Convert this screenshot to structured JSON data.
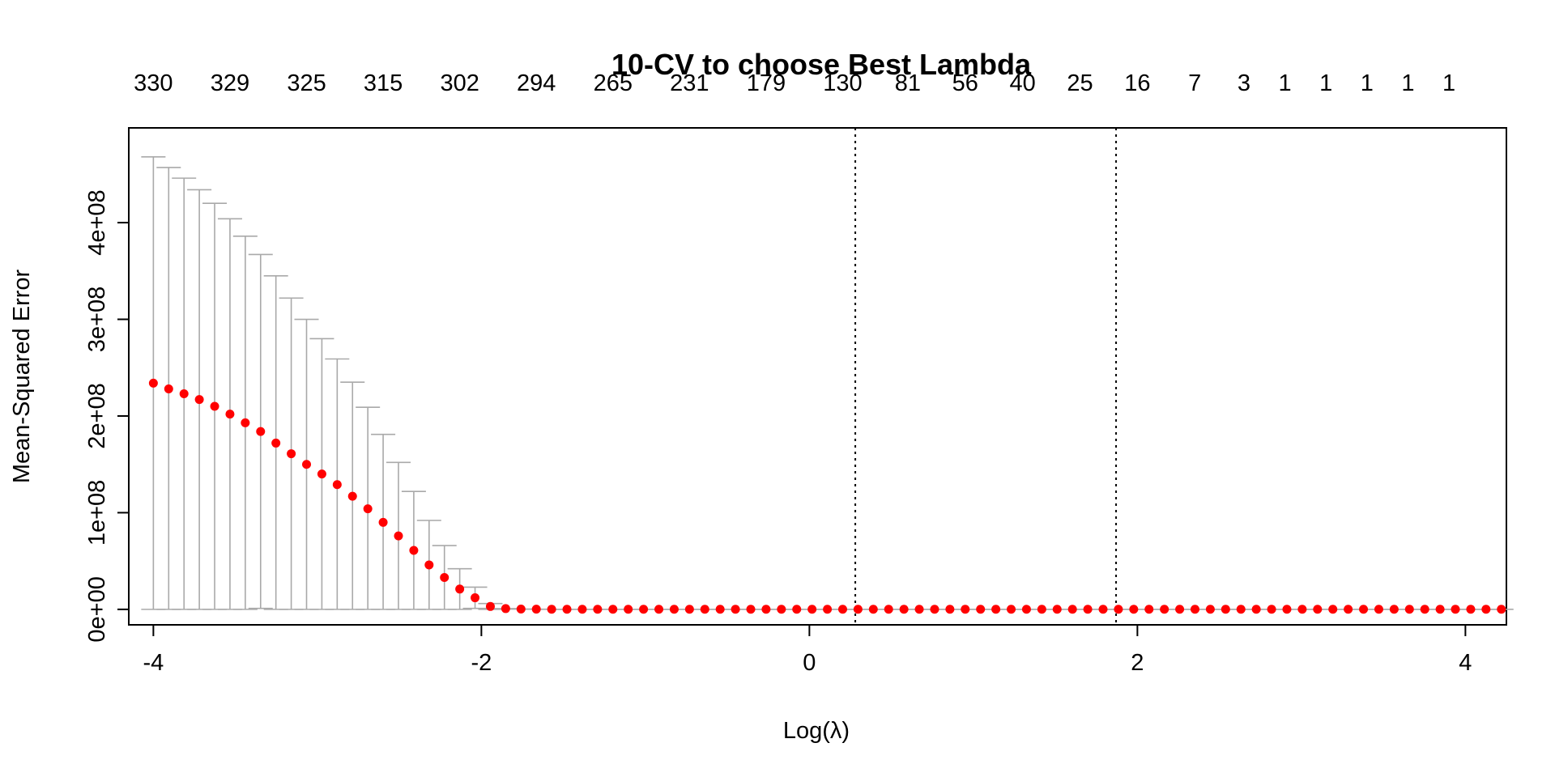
{
  "chart_data": {
    "type": "scatter",
    "title": "10-CV to choose Best Lambda",
    "xlabel": "Log(λ)",
    "ylabel": "Mean-Squared Error",
    "xlim": [
      -4.15,
      4.25
    ],
    "ylim": [
      -16000000.0,
      498000000.0
    ],
    "x_ticks": [
      -4,
      -2,
      0,
      2,
      4
    ],
    "x_tick_labels": [
      "-4",
      "-2",
      "0",
      "2",
      "4"
    ],
    "y_ticks": [
      0,
      100000000,
      200000000,
      300000000,
      400000000
    ],
    "y_tick_labels": [
      "0e+00",
      "1e+08",
      "2e+08",
      "3e+08",
      "4e+08"
    ],
    "top_axis": {
      "x": [
        -4.0,
        -3.533,
        -3.066,
        -2.599,
        -2.132,
        -1.665,
        -1.198,
        -0.731,
        -0.264,
        0.203,
        0.6,
        0.95,
        1.3,
        1.65,
        2.0,
        2.35,
        2.65,
        2.9,
        3.15,
        3.4,
        3.65,
        3.9
      ],
      "labels": [
        "330",
        "329",
        "325",
        "315",
        "302",
        "294",
        "265",
        "231",
        "179",
        "130",
        "81",
        "56",
        "40",
        "25",
        "16",
        "7",
        "3",
        "1",
        "1",
        "1",
        "1",
        "1"
      ]
    },
    "vlines": [
      0.28,
      1.87
    ],
    "series": [
      {
        "x_start": -4.0,
        "x_step": 0.0934,
        "mse": [
          234000000,
          228000000,
          223000000,
          217000000,
          210000000,
          202000000,
          193000000,
          184000000,
          172000000,
          161000000,
          150000000,
          140000000,
          129000000,
          117000000,
          104000000,
          90000000,
          76000000,
          61000000,
          46000000,
          33000000,
          21000000,
          12000000,
          3000000,
          800000,
          300000,
          200000,
          100000,
          100000,
          100000,
          100000,
          100000,
          100000,
          100000,
          100000,
          100000,
          100000,
          100000,
          100000,
          100000,
          100000,
          100000,
          100000,
          100000,
          100000,
          100000,
          100000,
          100000,
          100000,
          100000,
          100000,
          100000,
          100000,
          100000,
          100000,
          100000,
          100000,
          100000,
          100000,
          100000,
          100000,
          100000,
          100000,
          100000,
          100000,
          100000,
          100000,
          100000,
          100000,
          100000,
          100000,
          100000,
          100000,
          100000,
          100000,
          100000,
          100000,
          100000,
          100000,
          100000,
          100000,
          100000,
          100000,
          100000,
          100000,
          100000,
          100000,
          100000,
          100000,
          100000,
          100000,
          100000
        ],
        "upper": [
          468000000,
          457000000,
          446000000,
          434000000,
          420000000,
          404000000,
          386000000,
          367000000,
          345000000,
          322000000,
          300000000,
          280000000,
          259000000,
          235000000,
          209000000,
          181000000,
          152000000,
          122000000,
          92000000,
          66000000,
          42000000,
          23000000,
          6000000,
          1000000,
          400000,
          200000,
          100000
        ]
      }
    ],
    "colors": {
      "points": "#ff0000",
      "error_bars": "#a9a9a9",
      "axes": "#000000"
    }
  }
}
